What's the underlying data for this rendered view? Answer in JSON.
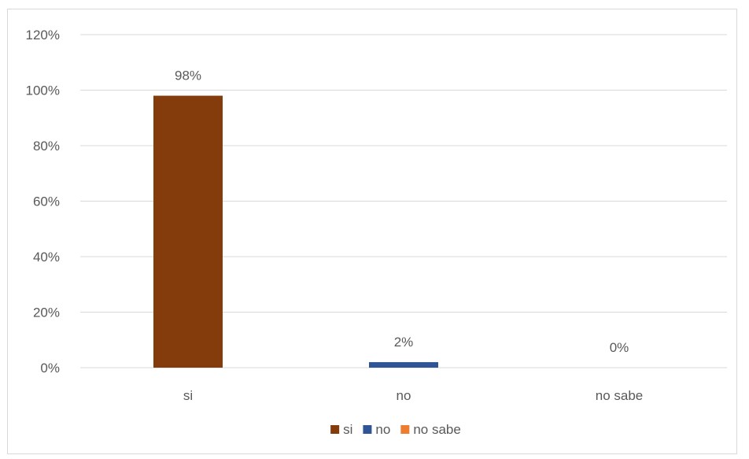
{
  "chart_data": {
    "type": "bar",
    "categories": [
      "si",
      "no",
      "no sabe"
    ],
    "values": [
      98,
      2,
      0
    ],
    "data_labels": [
      "98%",
      "2%",
      "0%"
    ],
    "colors": [
      "#843C0C",
      "#2F5597",
      "#ED7D31"
    ],
    "ylim": [
      0,
      120
    ],
    "yticks": [
      0,
      20,
      40,
      60,
      80,
      100,
      120
    ],
    "ytick_labels": [
      "0%",
      "20%",
      "40%",
      "60%",
      "80%",
      "100%",
      "120%"
    ],
    "grid": true,
    "legend_position": "bottom",
    "legend": [
      {
        "label": "si",
        "color": "#843C0C"
      },
      {
        "label": "no",
        "color": "#2F5597"
      },
      {
        "label": "no sabe",
        "color": "#ED7D31"
      }
    ]
  }
}
